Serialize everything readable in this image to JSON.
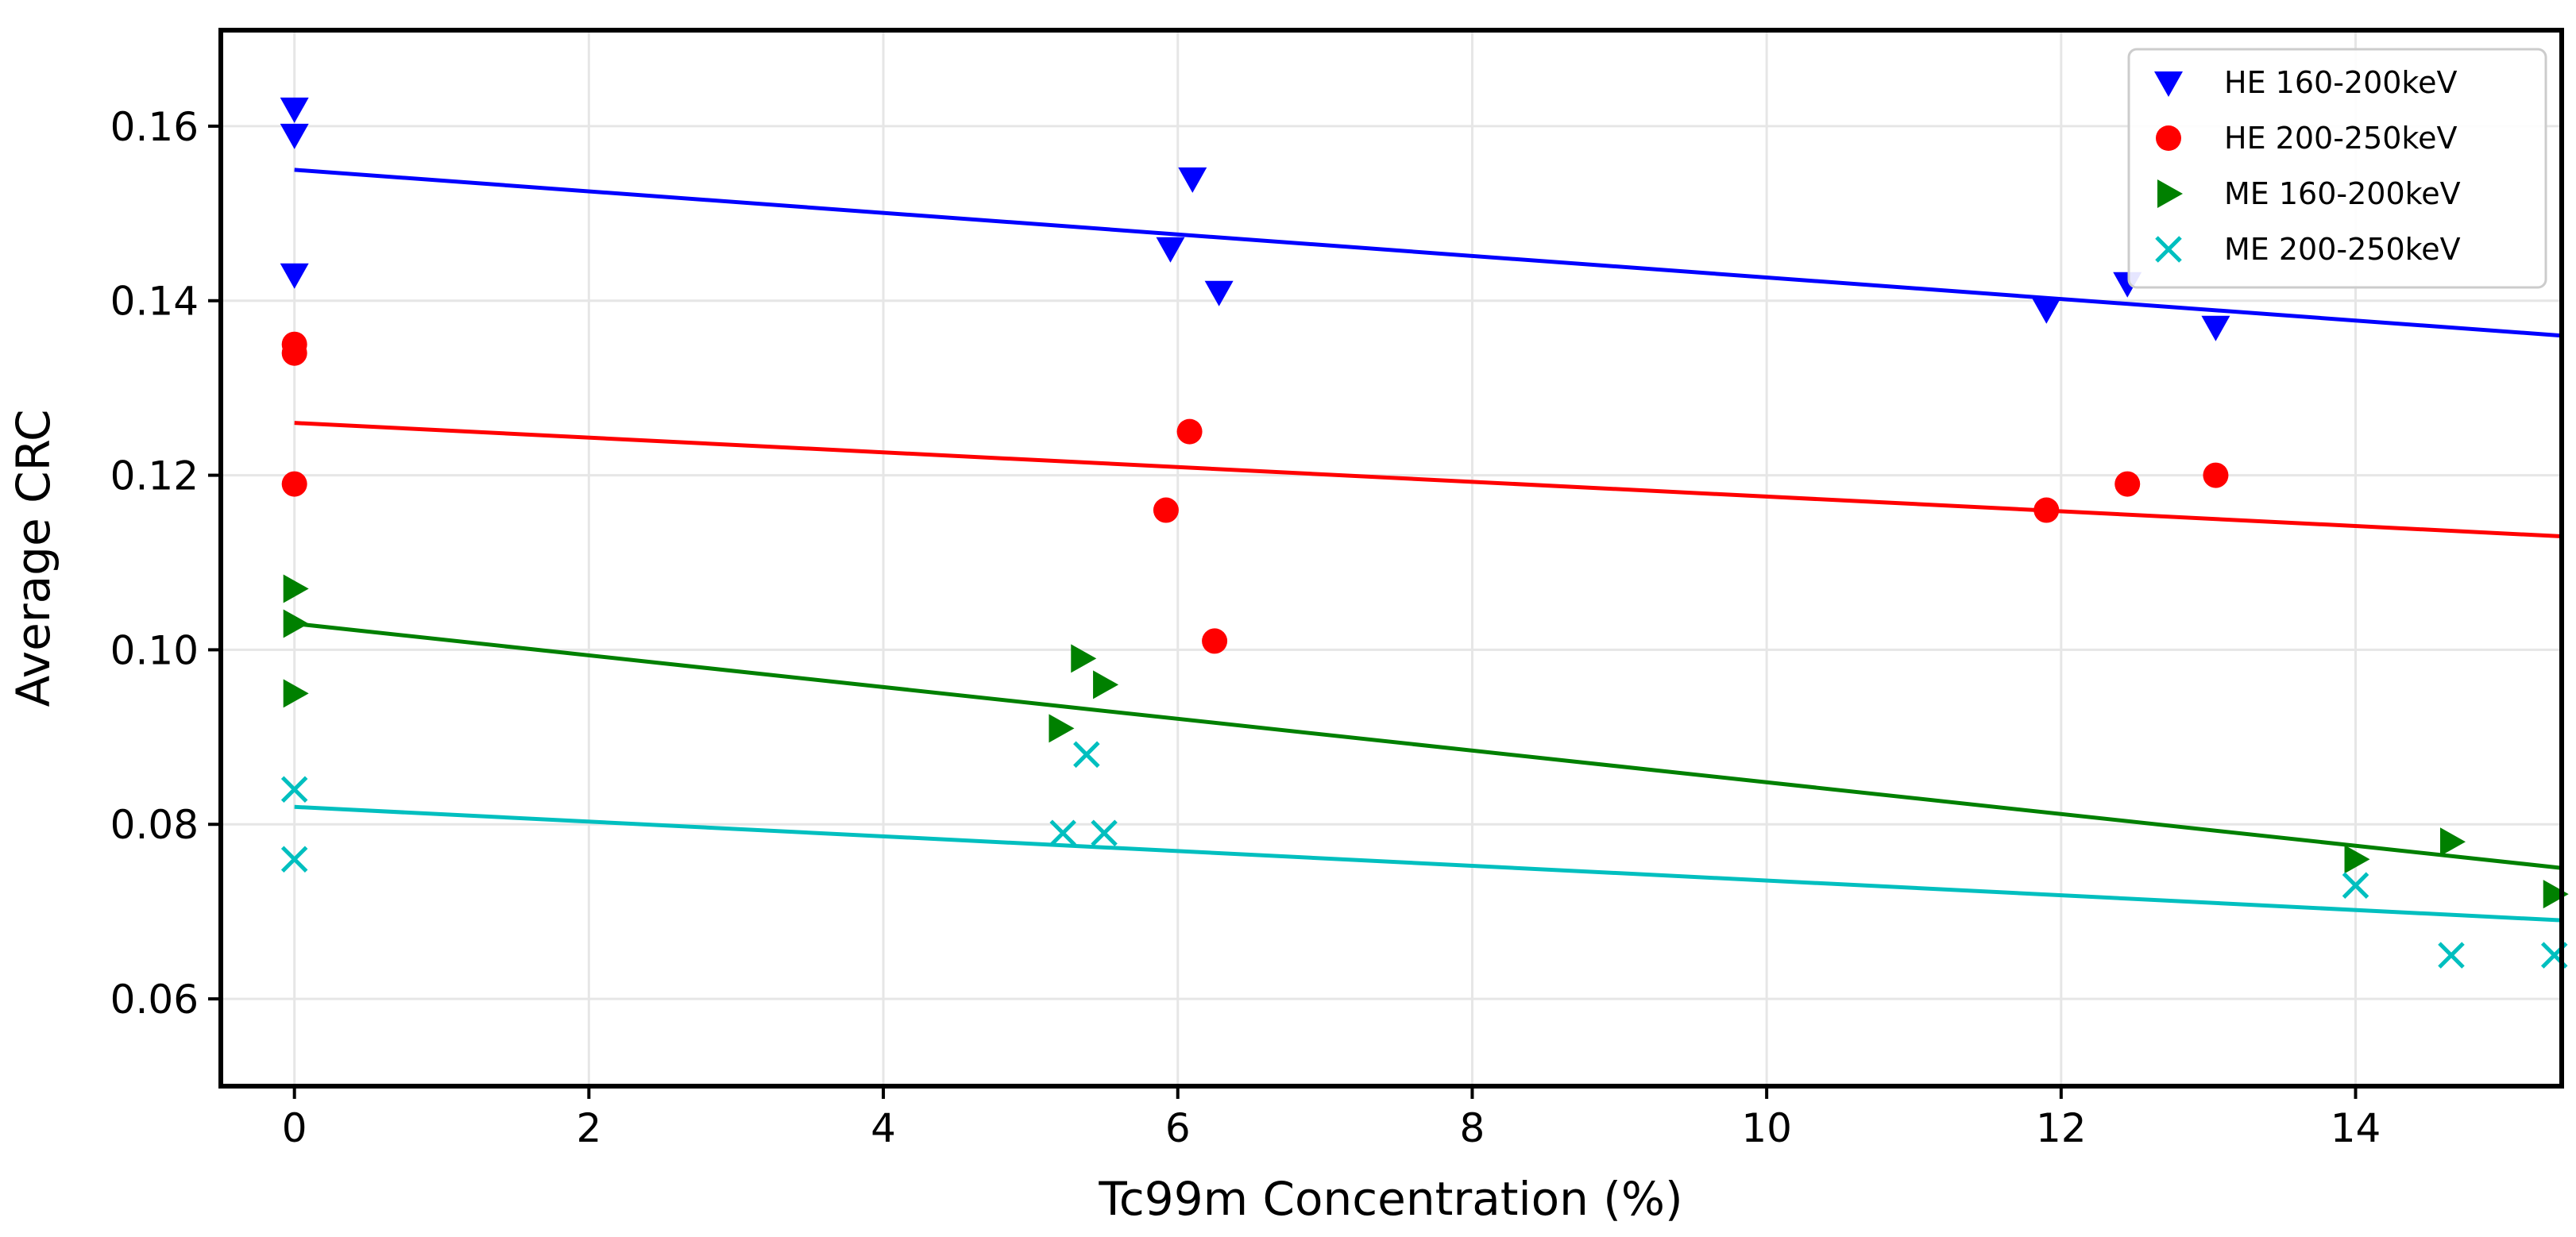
{
  "chart_data": {
    "type": "scatter",
    "title": "",
    "xlabel": "Tc99m Concentration (%)",
    "ylabel": "Average CRC",
    "xlim": [
      -0.5,
      15.4
    ],
    "ylim": [
      0.05,
      0.171
    ],
    "xticks": [
      0,
      2,
      4,
      6,
      8,
      10,
      12,
      14
    ],
    "xtick_labels": [
      "0",
      "2",
      "4",
      "6",
      "8",
      "10",
      "12",
      "14"
    ],
    "yticks": [
      0.06,
      0.08,
      0.1,
      0.12,
      0.14,
      0.16
    ],
    "ytick_labels": [
      "0.06",
      "0.08",
      "0.10",
      "0.12",
      "0.14",
      "0.16"
    ],
    "grid": true,
    "legend_position": "top-right",
    "series": [
      {
        "name": "HE 160-200keV",
        "marker": "triangle-down",
        "color": "#0000ff",
        "points": [
          [
            0,
            0.162
          ],
          [
            0,
            0.159
          ],
          [
            0,
            0.143
          ],
          [
            5.95,
            0.146
          ],
          [
            6.1,
            0.154
          ],
          [
            6.28,
            0.141
          ],
          [
            11.9,
            0.139
          ],
          [
            12.45,
            0.142
          ],
          [
            13.05,
            0.137
          ]
        ],
        "fit": [
          [
            0,
            0.155
          ],
          [
            15.4,
            0.136
          ]
        ]
      },
      {
        "name": "HE 200-250keV",
        "marker": "circle",
        "color": "#ff0000",
        "points": [
          [
            0,
            0.135
          ],
          [
            0,
            0.134
          ],
          [
            0,
            0.119
          ],
          [
            5.92,
            0.116
          ],
          [
            6.08,
            0.125
          ],
          [
            6.25,
            0.101
          ],
          [
            11.9,
            0.116
          ],
          [
            12.45,
            0.119
          ],
          [
            13.05,
            0.12
          ]
        ],
        "fit": [
          [
            0,
            0.126
          ],
          [
            15.4,
            0.113
          ]
        ]
      },
      {
        "name": "ME 160-200keV",
        "marker": "triangle-right",
        "color": "#008000",
        "points": [
          [
            0,
            0.107
          ],
          [
            0,
            0.103
          ],
          [
            0,
            0.095
          ],
          [
            5.2,
            0.091
          ],
          [
            5.35,
            0.099
          ],
          [
            5.5,
            0.096
          ],
          [
            14.0,
            0.076
          ],
          [
            14.65,
            0.078
          ],
          [
            15.35,
            0.072
          ]
        ],
        "fit": [
          [
            0,
            0.103
          ],
          [
            15.4,
            0.075
          ]
        ]
      },
      {
        "name": "ME 200-250keV",
        "marker": "x",
        "color": "#00bfbf",
        "points": [
          [
            0,
            0.084
          ],
          [
            0,
            0.076
          ],
          [
            5.22,
            0.079
          ],
          [
            5.38,
            0.088
          ],
          [
            5.5,
            0.079
          ],
          [
            14.0,
            0.073
          ],
          [
            14.65,
            0.065
          ],
          [
            15.35,
            0.065
          ]
        ],
        "fit": [
          [
            0,
            0.082
          ],
          [
            15.4,
            0.069
          ]
        ]
      }
    ]
  }
}
